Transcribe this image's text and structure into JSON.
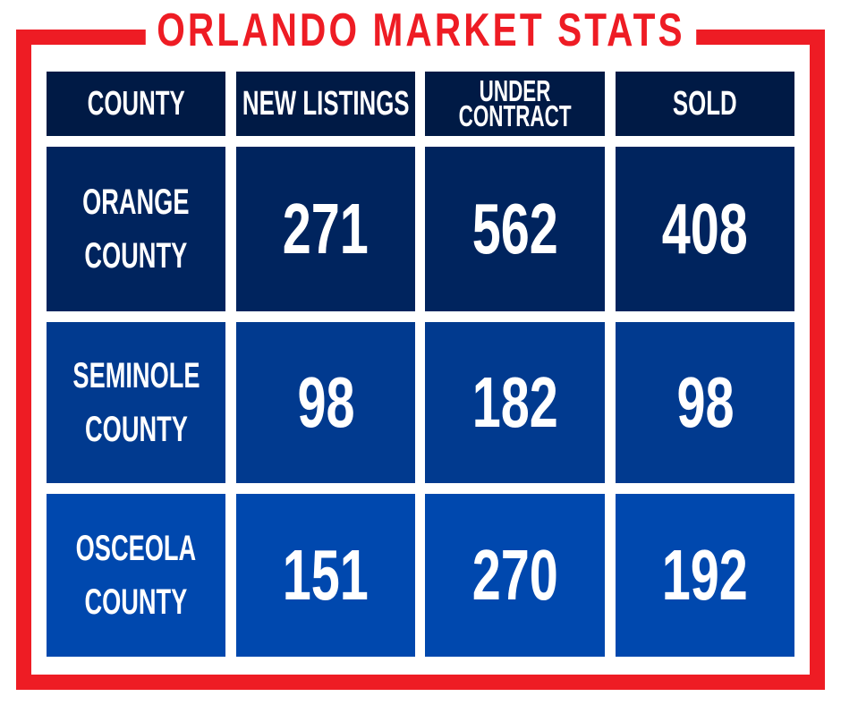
{
  "title": "ORLANDO MARKET STATS",
  "colors": {
    "accent": "#ee1c24",
    "header": "#001a45",
    "row1": "#00245e",
    "row2": "#013a8f",
    "row3": "#0048ae"
  },
  "headers": {
    "county": "COUNTY",
    "new_listings": "NEW LISTINGS",
    "under_contract_1": "UNDER",
    "under_contract_2": "CONTRACT",
    "sold": "SOLD"
  },
  "rows": [
    {
      "county_1": "ORANGE",
      "county_2": "COUNTY",
      "new_listings": "271",
      "under_contract": "562",
      "sold": "408"
    },
    {
      "county_1": "SEMINOLE",
      "county_2": "COUNTY",
      "new_listings": "98",
      "under_contract": "182",
      "sold": "98"
    },
    {
      "county_1": "OSCEOLA",
      "county_2": "COUNTY",
      "new_listings": "151",
      "under_contract": "270",
      "sold": "192"
    }
  ]
}
